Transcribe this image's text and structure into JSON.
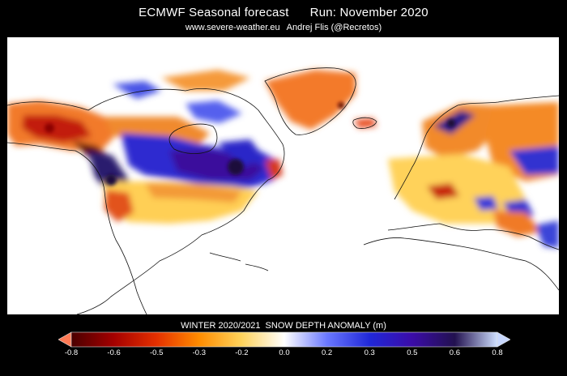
{
  "header": {
    "model_title": "ECMWF Seasonal forecast",
    "run_label": "Run: November 2020",
    "website": "www.severe-weather.eu",
    "author": "Andrej Flis (@Recretos)"
  },
  "map": {
    "region": "North America, North Atlantic and Europe",
    "projection": "equirectangular",
    "background": "#ffffff",
    "coastline_color": "#111111"
  },
  "legend": {
    "title_period": "WINTER 2020/2021",
    "title_variable": "SNOW DEPTH ANOMALY (m)",
    "ticks": [
      "-0.8",
      "-0.6",
      "-0.5",
      "-0.3",
      "-0.2",
      "0.0",
      "0.2",
      "0.3",
      "0.5",
      "0.6",
      "0.8"
    ],
    "stops": [
      "#4a0000",
      "#a40000",
      "#e53000",
      "#ff8c00",
      "#ffd35c",
      "#ffffff",
      "#6a78ff",
      "#2028d8",
      "#3b0ca8",
      "#22114f",
      "#cfe0ff"
    ],
    "min_arrow_color": "#ff7a55",
    "max_arrow_color": "#c8d8ff"
  },
  "anomaly_regions": [
    {
      "name": "western-canada-deficit",
      "sign": "negative",
      "level": "-0.5"
    },
    {
      "name": "alaska-deficit",
      "sign": "negative",
      "level": "-0.3"
    },
    {
      "name": "hudson-bay-surplus",
      "sign": "positive",
      "level": "0.6"
    },
    {
      "name": "central-canada-surplus",
      "sign": "positive",
      "level": "0.3"
    },
    {
      "name": "rockies-surplus",
      "sign": "positive",
      "level": "0.5"
    },
    {
      "name": "conus-deficit",
      "sign": "negative",
      "level": "-0.2"
    },
    {
      "name": "greenland-deficit",
      "sign": "negative",
      "level": "-0.3"
    },
    {
      "name": "scandinavia-deficit",
      "sign": "negative",
      "level": "-0.3"
    },
    {
      "name": "russia-deficit",
      "sign": "negative",
      "level": "-0.3"
    },
    {
      "name": "alps-deficit",
      "sign": "negative",
      "level": "-0.5"
    },
    {
      "name": "central-europe-deficit",
      "sign": "negative",
      "level": "-0.2"
    },
    {
      "name": "caucasus-surplus",
      "sign": "positive",
      "level": "0.3"
    }
  ]
}
